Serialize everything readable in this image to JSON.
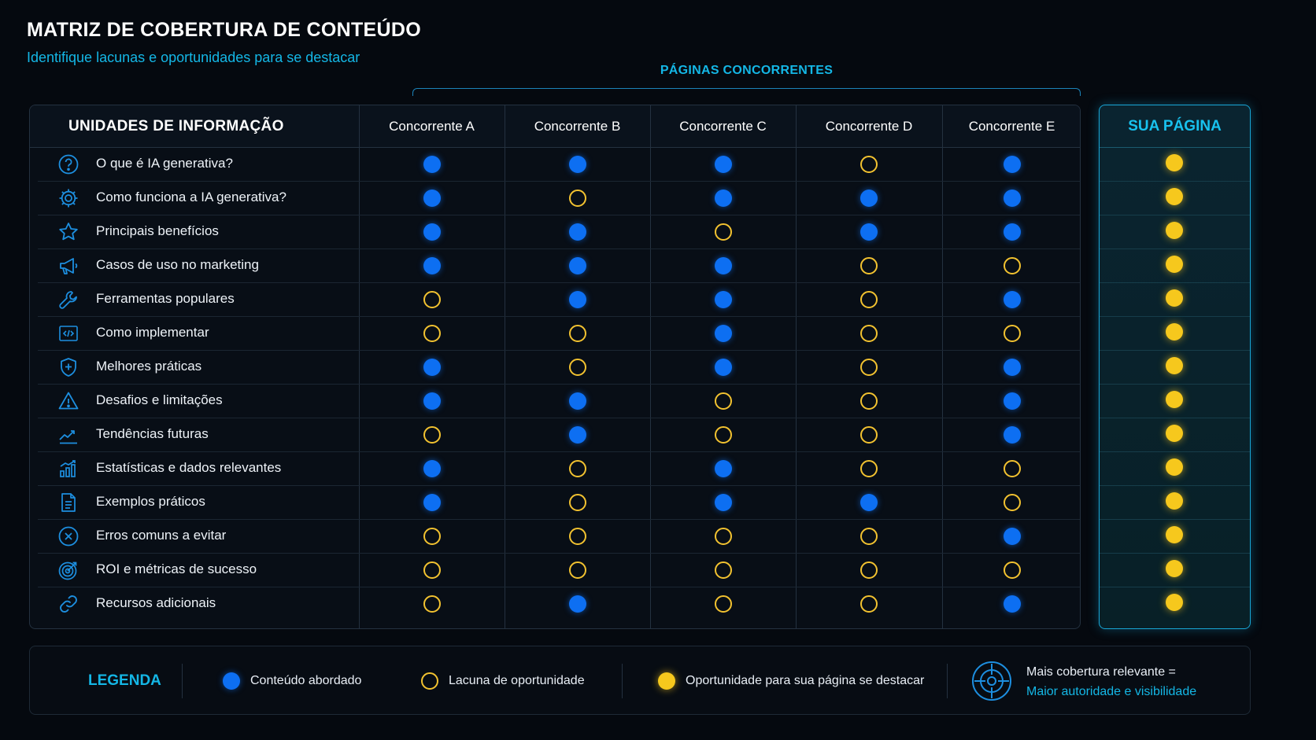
{
  "header": {
    "title": "MATRIZ DE COBERTURA DE CONTEÚDO",
    "subtitle": "Identifique lacunas e oportunidades para se destacar",
    "group_label": "PÁGINAS CONCORRENTES"
  },
  "table": {
    "units_header": "UNIDADES DE INFORMAÇÃO",
    "competitors": [
      "Concorrente A",
      "Concorrente B",
      "Concorrente C",
      "Concorrente D",
      "Concorrente E"
    ],
    "your_page_header": "SUA PÁGINA",
    "rows": [
      {
        "label": "O que é IA generativa?",
        "icon": "question-icon",
        "coverage": [
          "covered",
          "covered",
          "covered",
          "gap",
          "covered"
        ],
        "your_page": "opportunity"
      },
      {
        "label": "Como funciona a IA generativa?",
        "icon": "gear-icon",
        "coverage": [
          "covered",
          "gap",
          "covered",
          "covered",
          "covered"
        ],
        "your_page": "opportunity"
      },
      {
        "label": "Principais benefícios",
        "icon": "star-icon",
        "coverage": [
          "covered",
          "covered",
          "gap",
          "covered",
          "covered"
        ],
        "your_page": "opportunity"
      },
      {
        "label": "Casos de uso no marketing",
        "icon": "megaphone-icon",
        "coverage": [
          "covered",
          "covered",
          "covered",
          "gap",
          "gap"
        ],
        "your_page": "opportunity"
      },
      {
        "label": "Ferramentas populares",
        "icon": "wrench-icon",
        "coverage": [
          "gap",
          "covered",
          "covered",
          "gap",
          "covered"
        ],
        "your_page": "opportunity"
      },
      {
        "label": "Como implementar",
        "icon": "code-icon",
        "coverage": [
          "gap",
          "gap",
          "covered",
          "gap",
          "gap"
        ],
        "your_page": "opportunity"
      },
      {
        "label": "Melhores práticas",
        "icon": "shield-icon",
        "coverage": [
          "covered",
          "gap",
          "covered",
          "gap",
          "covered"
        ],
        "your_page": "opportunity"
      },
      {
        "label": "Desafios e limitações",
        "icon": "warning-icon",
        "coverage": [
          "covered",
          "covered",
          "gap",
          "gap",
          "covered"
        ],
        "your_page": "opportunity"
      },
      {
        "label": "Tendências futuras",
        "icon": "trend-icon",
        "coverage": [
          "gap",
          "covered",
          "gap",
          "gap",
          "covered"
        ],
        "your_page": "opportunity"
      },
      {
        "label": "Estatísticas e dados relevantes",
        "icon": "bar-chart-icon",
        "coverage": [
          "covered",
          "gap",
          "covered",
          "gap",
          "gap"
        ],
        "your_page": "opportunity"
      },
      {
        "label": "Exemplos práticos",
        "icon": "document-icon",
        "coverage": [
          "covered",
          "gap",
          "covered",
          "covered",
          "gap"
        ],
        "your_page": "opportunity"
      },
      {
        "label": "Erros comuns a evitar",
        "icon": "x-circle-icon",
        "coverage": [
          "gap",
          "gap",
          "gap",
          "gap",
          "covered"
        ],
        "your_page": "opportunity"
      },
      {
        "label": "ROI e métricas de sucesso",
        "icon": "target-icon",
        "coverage": [
          "gap",
          "gap",
          "gap",
          "gap",
          "gap"
        ],
        "your_page": "opportunity"
      },
      {
        "label": "Recursos adicionais",
        "icon": "link-icon",
        "coverage": [
          "gap",
          "covered",
          "gap",
          "gap",
          "covered"
        ],
        "your_page": "opportunity"
      }
    ]
  },
  "legend": {
    "title": "LEGENDA",
    "covered": "Conteúdo abordado",
    "gap": "Lacuna de oportunidade",
    "opportunity": "Oportunidade para sua página se destacar",
    "note_line1": "Mais cobertura relevante =",
    "note_line2": "Maior autoridade e visibilidade"
  },
  "colors": {
    "covered": "#0d6ff2",
    "gap": "#f2c230",
    "opportunity": "#f6c81d",
    "accent": "#14b7e6",
    "background": "#05090f"
  }
}
